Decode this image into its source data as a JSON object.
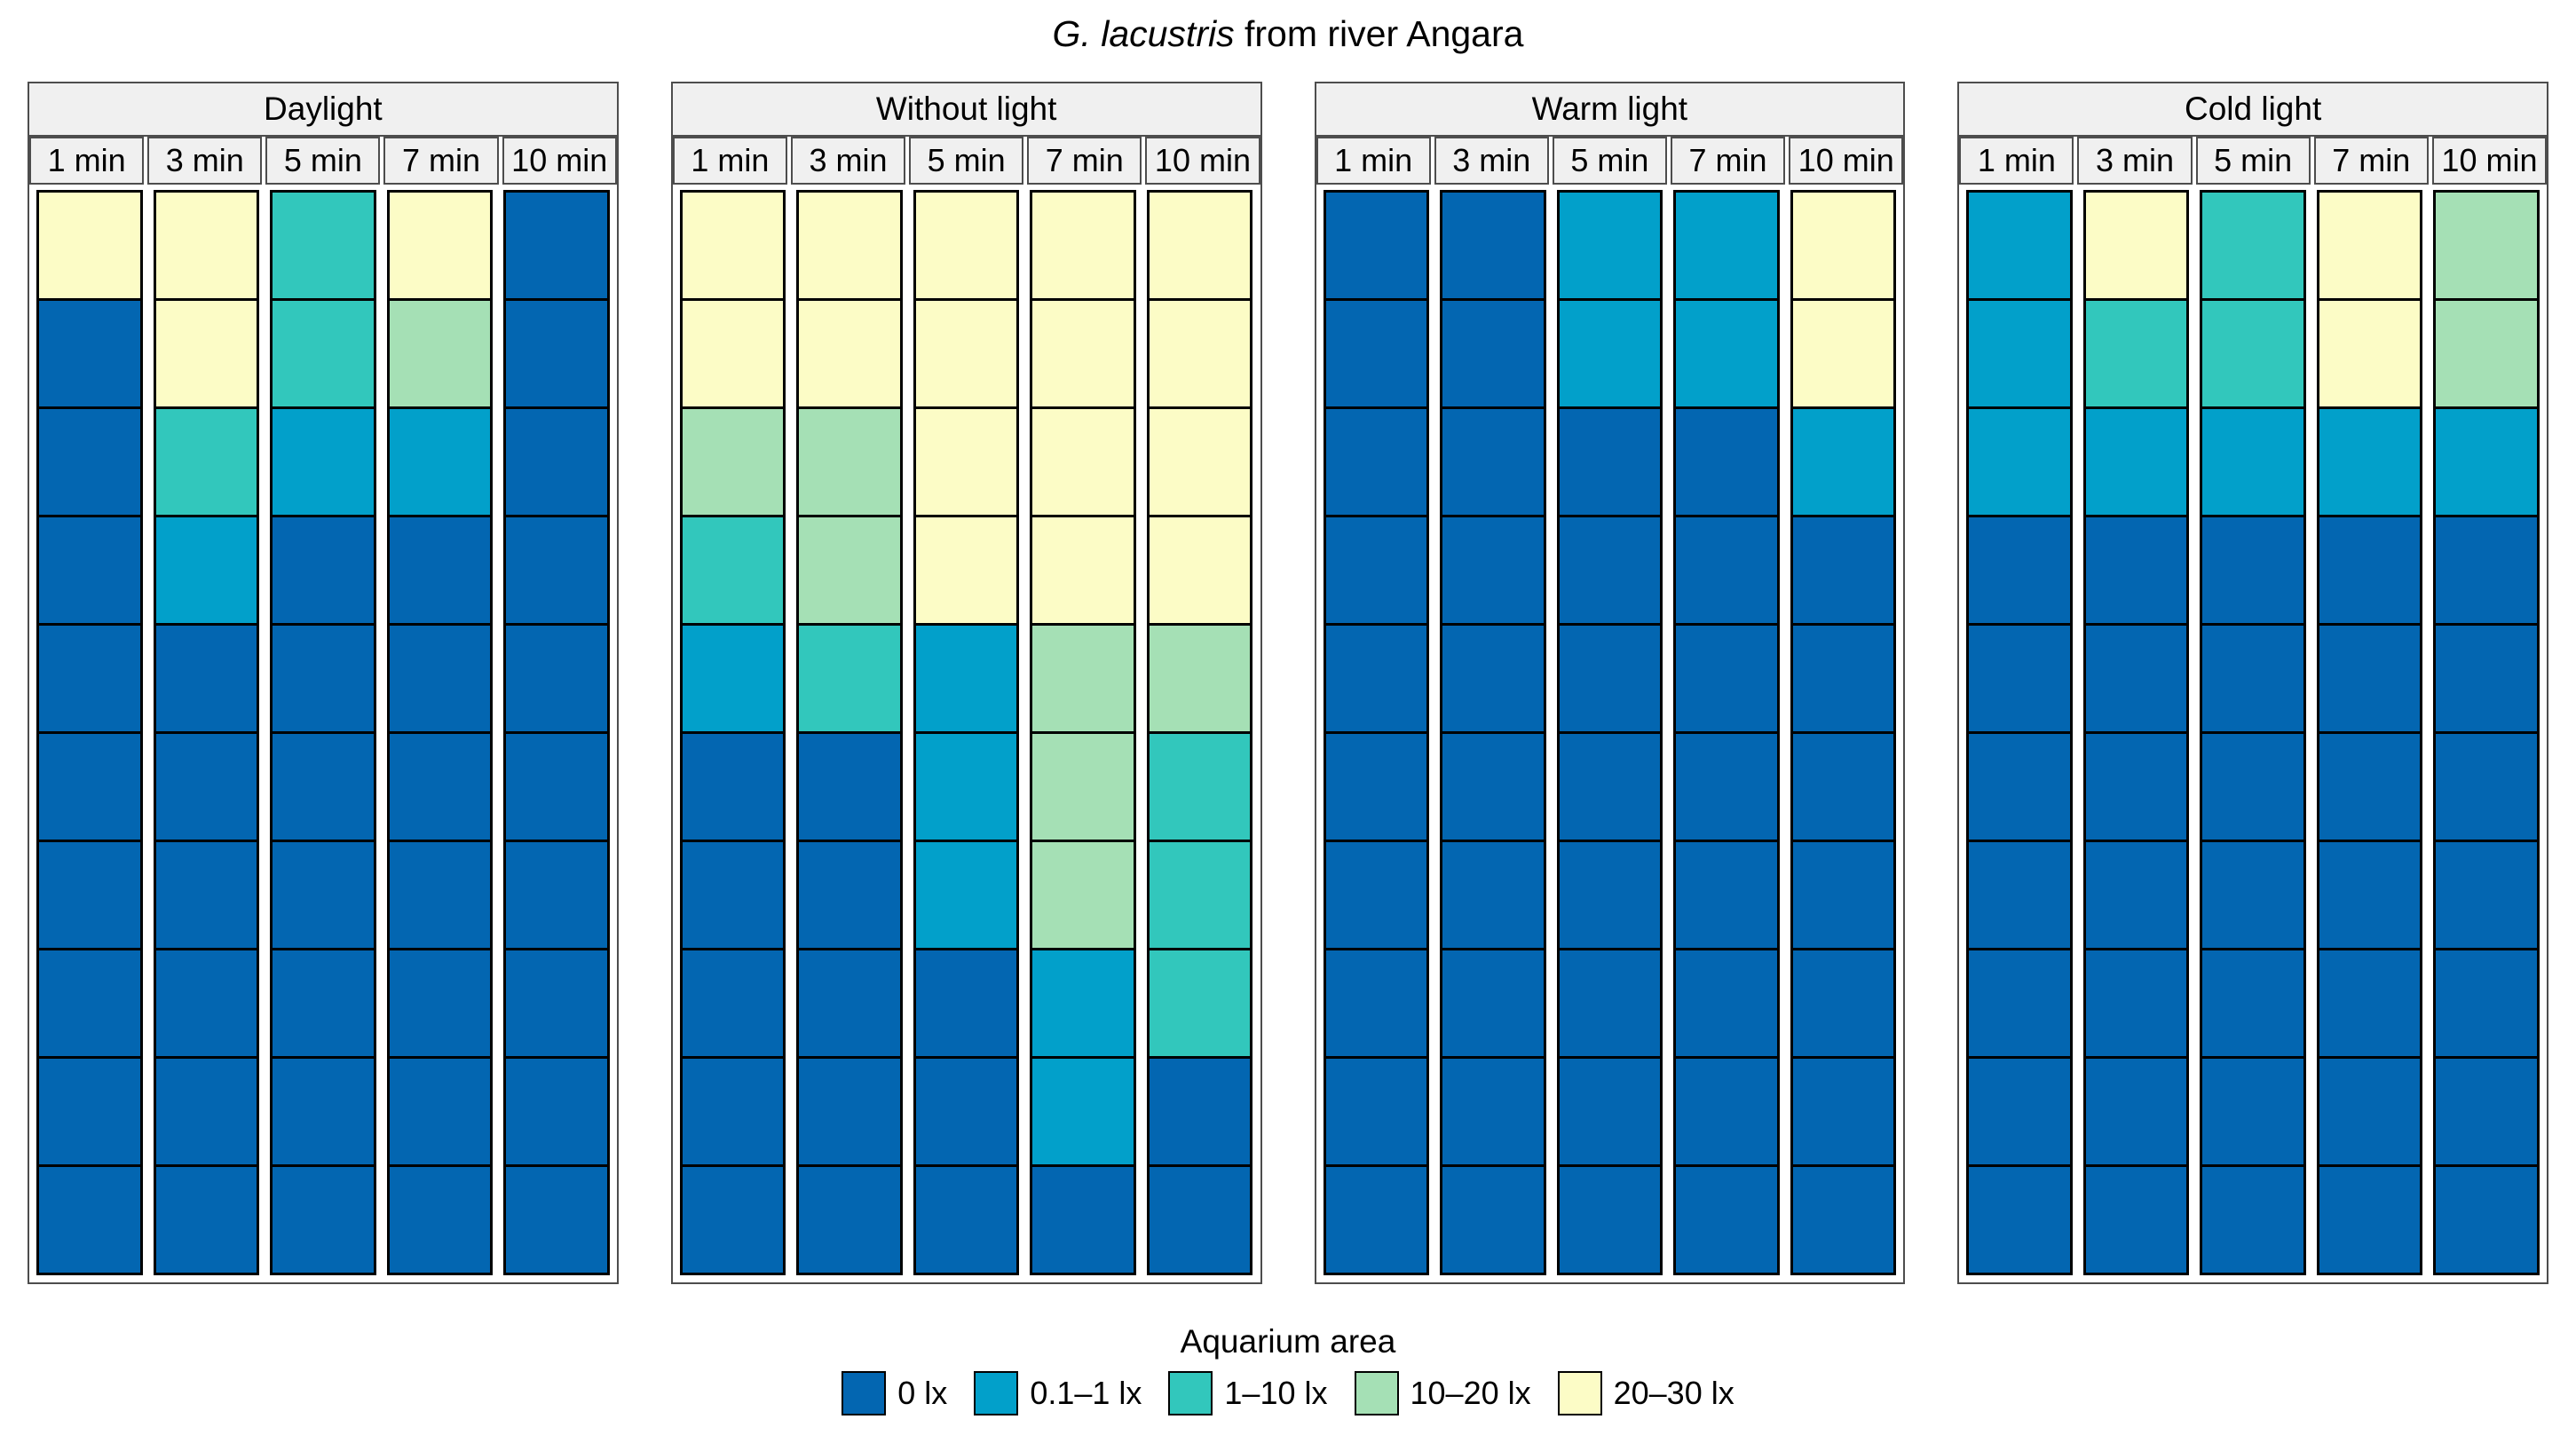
{
  "page_title": {
    "italic_part": "G. lacustris",
    "regular_part": " from river Angara"
  },
  "chart_data": {
    "type": "heatmap",
    "title": "G. lacustris from river Angara",
    "x_categories": [
      "1 min",
      "3 min",
      "5 min",
      "7 min",
      "10 min"
    ],
    "legend_title": "Aquarium area",
    "legend_position": "bottom",
    "levels": [
      {
        "index": 0,
        "label": "0 lx",
        "color": "#0366b1"
      },
      {
        "index": 1,
        "label": "0.1–1 lx",
        "color": "#02a0ca"
      },
      {
        "index": 2,
        "label": "1–10 lx",
        "color": "#32c7bc"
      },
      {
        "index": 3,
        "label": "10–20 lx",
        "color": "#a5e0b5"
      },
      {
        "index": 4,
        "label": "20–30 lx",
        "color": "#fcfcc6"
      }
    ],
    "facets": [
      {
        "label": "Daylight",
        "grid": [
          [
            4,
            4,
            2,
            4,
            0
          ],
          [
            0,
            4,
            2,
            3,
            0
          ],
          [
            0,
            2,
            1,
            1,
            0
          ],
          [
            0,
            1,
            0,
            0,
            0
          ],
          [
            0,
            0,
            0,
            0,
            0
          ],
          [
            0,
            0,
            0,
            0,
            0
          ],
          [
            0,
            0,
            0,
            0,
            0
          ],
          [
            0,
            0,
            0,
            0,
            0
          ],
          [
            0,
            0,
            0,
            0,
            0
          ],
          [
            0,
            0,
            0,
            0,
            0
          ]
        ]
      },
      {
        "label": "Without light",
        "grid": [
          [
            4,
            4,
            4,
            4,
            4
          ],
          [
            4,
            4,
            4,
            4,
            4
          ],
          [
            3,
            3,
            4,
            4,
            4
          ],
          [
            2,
            3,
            4,
            4,
            4
          ],
          [
            1,
            2,
            1,
            3,
            3
          ],
          [
            0,
            0,
            1,
            3,
            2
          ],
          [
            0,
            0,
            1,
            3,
            2
          ],
          [
            0,
            0,
            0,
            1,
            2
          ],
          [
            0,
            0,
            0,
            1,
            0
          ],
          [
            0,
            0,
            0,
            0,
            0
          ]
        ]
      },
      {
        "label": "Warm light",
        "grid": [
          [
            0,
            0,
            1,
            1,
            4
          ],
          [
            0,
            0,
            1,
            1,
            4
          ],
          [
            0,
            0,
            0,
            0,
            1
          ],
          [
            0,
            0,
            0,
            0,
            0
          ],
          [
            0,
            0,
            0,
            0,
            0
          ],
          [
            0,
            0,
            0,
            0,
            0
          ],
          [
            0,
            0,
            0,
            0,
            0
          ],
          [
            0,
            0,
            0,
            0,
            0
          ],
          [
            0,
            0,
            0,
            0,
            0
          ],
          [
            0,
            0,
            0,
            0,
            0
          ]
        ]
      },
      {
        "label": "Cold light",
        "grid": [
          [
            1,
            4,
            2,
            4,
            3
          ],
          [
            1,
            2,
            2,
            4,
            3
          ],
          [
            1,
            1,
            1,
            1,
            1
          ],
          [
            0,
            0,
            0,
            0,
            0
          ],
          [
            0,
            0,
            0,
            0,
            0
          ],
          [
            0,
            0,
            0,
            0,
            0
          ],
          [
            0,
            0,
            0,
            0,
            0
          ],
          [
            0,
            0,
            0,
            0,
            0
          ],
          [
            0,
            0,
            0,
            0,
            0
          ],
          [
            0,
            0,
            0,
            0,
            0
          ]
        ]
      }
    ]
  },
  "styles": {
    "header_bg": "#f0f0f0",
    "frame_border": "#4d4d4d",
    "cell_border": "#000000",
    "background": "#ffffff"
  }
}
